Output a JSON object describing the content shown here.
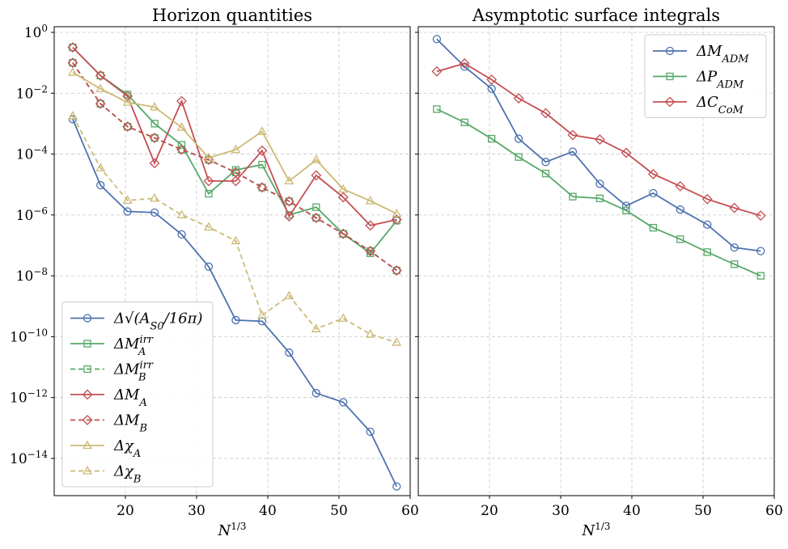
{
  "chart_data": [
    {
      "type": "line",
      "title": "Horizon quantities",
      "xlabel": "N^1/3",
      "ylabel": "",
      "yscale": "log",
      "xlim": [
        10,
        60
      ],
      "ylim": [
        3e-16,
        1.5
      ],
      "xticks": [
        20,
        30,
        40,
        50,
        60
      ],
      "yticks": [
        1e-14,
        1e-12,
        1e-10,
        1e-08,
        1e-06,
        0.0001,
        0.01,
        1
      ],
      "ytick_labels": [
        {
          "base": "10",
          "exp": "−14"
        },
        {
          "base": "10",
          "exp": "−12"
        },
        {
          "base": "10",
          "exp": "−10"
        },
        {
          "base": "10",
          "exp": "−8"
        },
        {
          "base": "10",
          "exp": "−6"
        },
        {
          "base": "10",
          "exp": "−4"
        },
        {
          "base": "10",
          "exp": "−2"
        },
        {
          "base": "10",
          "exp": "0"
        }
      ],
      "xtick_labels": [
        "20",
        "30",
        "40",
        "50",
        "60"
      ],
      "grid": true,
      "legend_position": "bottom-left",
      "x": [
        12.6,
        16.5,
        20.3,
        24.1,
        27.9,
        31.7,
        35.5,
        39.2,
        43.0,
        46.8,
        50.6,
        54.4,
        58.1
      ],
      "series": [
        {
          "name": "Δ√(A_S0/16π)",
          "color": "#4C72B0",
          "marker": "circle",
          "linestyle": "solid",
          "values": [
            0.0014,
            9.5e-06,
            1.3e-06,
            1.2e-06,
            2.3e-07,
            2e-08,
            3.5e-10,
            3.2e-10,
            3e-11,
            1.4e-12,
            7e-13,
            7.5e-14,
            1.2e-15
          ]
        },
        {
          "name": "ΔM_A^irr",
          "color": "#55A868",
          "marker": "square",
          "linestyle": "solid",
          "values": [
            0.32,
            0.038,
            0.009,
            0.001,
            0.0002,
            5e-06,
            3e-05,
            4.5e-05,
            1e-06,
            1.8e-06,
            2.4e-07,
            5.5e-08,
            6.5e-07
          ]
        },
        {
          "name": "ΔM_B^irr",
          "color": "#55A868",
          "marker": "square",
          "linestyle": "dashed",
          "values": [
            0.1,
            0.0045,
            0.0008,
            0.00034,
            0.00014,
            6.5e-05,
            2.5e-05,
            8e-06,
            2.8e-06,
            8e-07,
            2.4e-07,
            6.5e-08,
            1.5e-08
          ]
        },
        {
          "name": "ΔM_A",
          "color": "#C44E52",
          "marker": "diamond",
          "linestyle": "solid",
          "values": [
            0.32,
            0.038,
            0.008,
            5e-05,
            0.0055,
            1.3e-05,
            1.3e-05,
            0.00013,
            9e-07,
            2e-05,
            3.8e-06,
            4.5e-07,
            7e-07
          ]
        },
        {
          "name": "ΔM_B",
          "color": "#C44E52",
          "marker": "diamond",
          "linestyle": "dashed",
          "values": [
            0.1,
            0.0045,
            0.0008,
            0.00034,
            0.00014,
            6.5e-05,
            2.5e-05,
            8e-06,
            2.8e-06,
            8e-07,
            2.4e-07,
            6.5e-08,
            1.5e-08
          ]
        },
        {
          "name": "Δχ_A",
          "color": "#CCB974",
          "marker": "triangle",
          "linestyle": "solid",
          "values": [
            0.048,
            0.014,
            0.005,
            0.0035,
            0.00075,
            7.5e-05,
            0.00014,
            0.00055,
            1.3e-05,
            6.5e-05,
            7e-06,
            2.9e-06,
            1.1e-06
          ]
        },
        {
          "name": "Δχ_B",
          "color": "#CCB974",
          "marker": "triangle",
          "linestyle": "dashed",
          "values": [
            0.0018,
            3.5e-05,
            3e-06,
            3.5e-06,
            1e-06,
            4e-07,
            1.4e-07,
            5e-10,
            2.2e-09,
            1.8e-10,
            4e-10,
            1.2e-10,
            6.5e-11
          ]
        }
      ]
    },
    {
      "type": "line",
      "title": "Asymptotic surface integrals",
      "xlabel": "N^1/3",
      "ylabel": "",
      "yscale": "log",
      "shared_y_with_left": true,
      "xlim": [
        10,
        60
      ],
      "ylim": [
        3e-16,
        1.5
      ],
      "xticks": [
        20,
        30,
        40,
        50,
        60
      ],
      "xtick_labels": [
        "20",
        "30",
        "40",
        "50",
        "60"
      ],
      "grid": true,
      "legend_position": "top-right",
      "x": [
        12.6,
        16.5,
        20.3,
        24.1,
        27.9,
        31.7,
        35.5,
        39.2,
        43.0,
        46.8,
        50.6,
        54.4,
        58.1
      ],
      "series": [
        {
          "name": "ΔM_ADM",
          "color": "#4C72B0",
          "marker": "circle",
          "linestyle": "solid",
          "values": [
            0.6,
            0.075,
            0.014,
            0.00032,
            5.5e-05,
            0.00012,
            1.05e-05,
            2e-06,
            5.2e-06,
            1.5e-06,
            4.8e-07,
            8.5e-08,
            6.5e-08
          ]
        },
        {
          "name": "ΔP_ADM",
          "color": "#55A868",
          "marker": "square",
          "linestyle": "solid",
          "values": [
            0.003,
            0.0011,
            0.00032,
            8e-05,
            2.3e-05,
            4e-06,
            3.5e-06,
            1.4e-06,
            3.8e-07,
            1.6e-07,
            6e-08,
            2.4e-08,
            1e-08
          ]
        },
        {
          "name": "ΔC_CoM",
          "color": "#C44E52",
          "marker": "diamond",
          "linestyle": "solid",
          "values": [
            0.052,
            0.095,
            0.028,
            0.0068,
            0.0022,
            0.00042,
            0.0003,
            0.00011,
            2.2e-05,
            8.8e-06,
            3.3e-06,
            1.7e-06,
            9.5e-07
          ]
        }
      ]
    }
  ]
}
